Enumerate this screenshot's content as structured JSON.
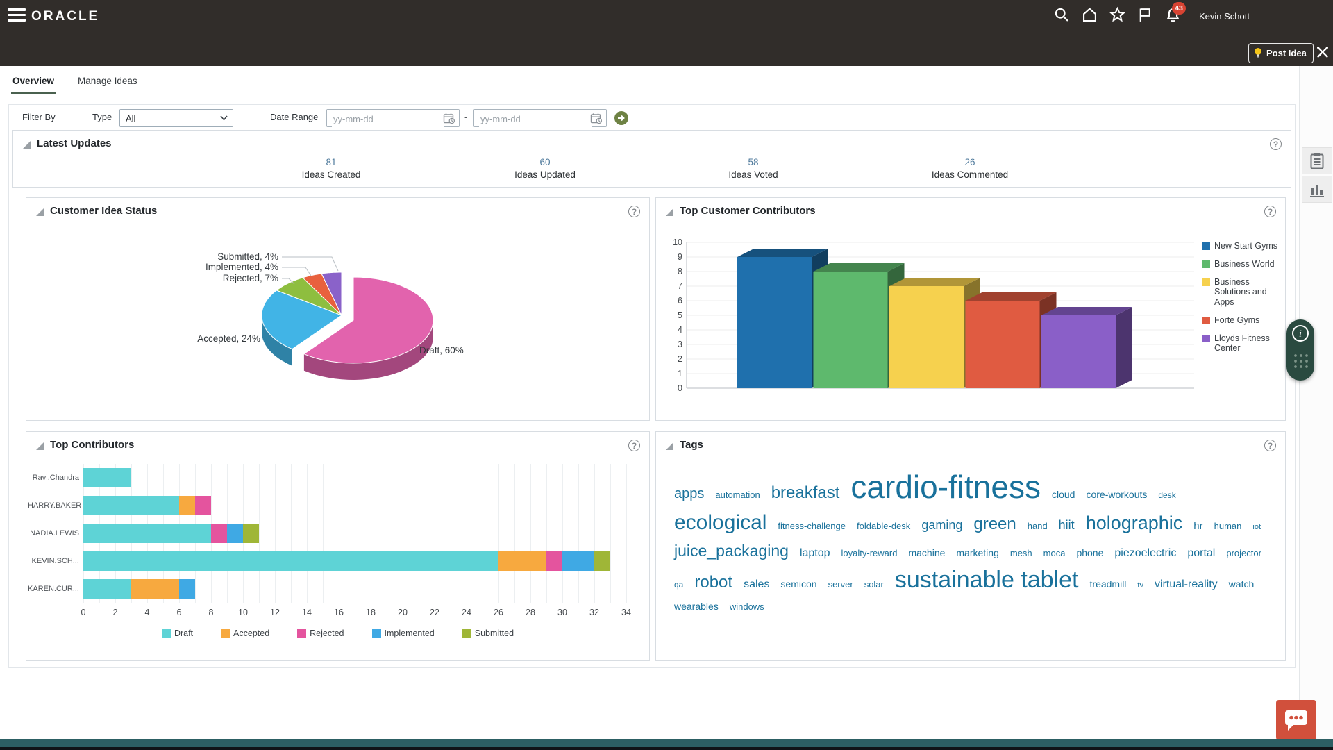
{
  "app": {
    "brand": "ORACLE",
    "user_name": "Kevin Schott",
    "notification_count": "43",
    "post_idea_label": "Post Idea",
    "top_icons": [
      "hamburger-icon",
      "search-icon",
      "home-icon",
      "favorites-star-icon",
      "flag-icon",
      "notifications-bell-icon",
      "tools-icon"
    ]
  },
  "tabs": [
    {
      "label": "Overview",
      "active": true
    },
    {
      "label": "Manage Ideas",
      "active": false
    }
  ],
  "filter": {
    "filter_by_label": "Filter By",
    "type_label": "Type",
    "type_value": "All",
    "date_range_label": "Date Range",
    "date_from_placeholder": "yy-mm-dd",
    "date_to_placeholder": "yy-mm-dd",
    "separator": "-"
  },
  "latest_updates": {
    "title": "Latest Updates",
    "stats": [
      {
        "value": "81",
        "label": "Ideas Created"
      },
      {
        "value": "60",
        "label": "Ideas Updated"
      },
      {
        "value": "58",
        "label": "Ideas Voted"
      },
      {
        "value": "26",
        "label": "Ideas Commented"
      }
    ]
  },
  "chart_data": [
    {
      "id": "customer_idea_status",
      "type": "pie",
      "title": "Customer Idea Status",
      "labels": [
        "Draft",
        "Accepted",
        "Rejected",
        "Implemented",
        "Submitted"
      ],
      "values": [
        60,
        24,
        7,
        4,
        4
      ],
      "unit": "%",
      "colors": [
        "#e263ad",
        "#41b4e6",
        "#8ebe3f",
        "#e8613e",
        "#8a62c9"
      ],
      "style": "3d, first slice exploded",
      "label_format": "Label, N%"
    },
    {
      "id": "top_customer_contributors",
      "type": "bar",
      "title": "Top Customer Contributors",
      "categories": [
        "New Start Gyms",
        "Business World",
        "Business Solutions and Apps",
        "Forte Gyms",
        "Lloyds Fitness Center"
      ],
      "values": [
        9,
        8,
        7,
        6,
        5
      ],
      "colors": [
        "#1f70ad",
        "#5eb96d",
        "#f6d14e",
        "#e05b41",
        "#8a5fc8"
      ],
      "ylim": [
        0,
        10
      ],
      "ytick_step": 1,
      "grid": true,
      "legend_position": "right",
      "style": "3d"
    },
    {
      "id": "top_contributors",
      "type": "bar",
      "orientation": "horizontal-stacked",
      "title": "Top Contributors",
      "categories": [
        "Ravi.Chandra",
        "HARRY.BAKER",
        "NADIA.LEWIS",
        "KEVIN.SCH...",
        "KAREN.CUR..."
      ],
      "series": [
        {
          "name": "Draft",
          "color": "#5ed3d6",
          "values": [
            3,
            6,
            8,
            26,
            3
          ]
        },
        {
          "name": "Accepted",
          "color": "#f7a93f",
          "values": [
            0,
            1,
            0,
            3,
            3
          ]
        },
        {
          "name": "Rejected",
          "color": "#e4549e",
          "values": [
            0,
            1,
            1,
            1,
            0
          ]
        },
        {
          "name": "Implemented",
          "color": "#3fa9e4",
          "values": [
            0,
            0,
            1,
            2,
            1
          ]
        },
        {
          "name": "Submitted",
          "color": "#9fb637",
          "values": [
            0,
            0,
            1,
            1,
            0
          ]
        }
      ],
      "xlim": [
        0,
        34
      ],
      "xtick_step": 2,
      "grid_step": 1,
      "legend_position": "bottom"
    },
    {
      "id": "tags",
      "type": "wordcloud",
      "title": "Tags",
      "color": "#19719b",
      "words": [
        {
          "text": "apps",
          "size": 20
        },
        {
          "text": "automation",
          "size": 13
        },
        {
          "text": "breakfast",
          "size": 24
        },
        {
          "text": "cardio-fitness",
          "size": 46
        },
        {
          "text": "cloud",
          "size": 14
        },
        {
          "text": "core-workouts",
          "size": 14
        },
        {
          "text": "desk",
          "size": 12
        },
        {
          "text": "ecological",
          "size": 30
        },
        {
          "text": "fitness-challenge",
          "size": 13
        },
        {
          "text": "foldable-desk",
          "size": 13
        },
        {
          "text": "gaming",
          "size": 18
        },
        {
          "text": "green",
          "size": 24
        },
        {
          "text": "hand",
          "size": 13
        },
        {
          "text": "hiit",
          "size": 18
        },
        {
          "text": "holographic",
          "size": 27
        },
        {
          "text": "hr",
          "size": 15
        },
        {
          "text": "human",
          "size": 13
        },
        {
          "text": "iot",
          "size": 11
        },
        {
          "text": "juice_packaging",
          "size": 23
        },
        {
          "text": "laptop",
          "size": 16
        },
        {
          "text": "loyalty-reward",
          "size": 13
        },
        {
          "text": "machine",
          "size": 14
        },
        {
          "text": "marketing",
          "size": 14
        },
        {
          "text": "mesh",
          "size": 13
        },
        {
          "text": "moca",
          "size": 13
        },
        {
          "text": "phone",
          "size": 14
        },
        {
          "text": "piezoelectric",
          "size": 16
        },
        {
          "text": "portal",
          "size": 16
        },
        {
          "text": "projector",
          "size": 13
        },
        {
          "text": "qa",
          "size": 12
        },
        {
          "text": "robot",
          "size": 24
        },
        {
          "text": "sales",
          "size": 16
        },
        {
          "text": "semicon",
          "size": 14
        },
        {
          "text": "server",
          "size": 13
        },
        {
          "text": "solar",
          "size": 13
        },
        {
          "text": "sustainable tablet",
          "size": 34
        },
        {
          "text": "treadmill",
          "size": 14
        },
        {
          "text": "tv",
          "size": 11
        },
        {
          "text": "virtual-reality",
          "size": 16
        },
        {
          "text": "watch",
          "size": 14
        },
        {
          "text": "wearables",
          "size": 14
        },
        {
          "text": "windows",
          "size": 13
        }
      ]
    }
  ],
  "side_panel": {
    "icons": [
      "clipboard-icon",
      "bar-chart-icon"
    ]
  },
  "assist_widget": {
    "icons": [
      "info-icon",
      "drag-dots-icon"
    ],
    "color": "#2a4a40"
  },
  "chat_button": {
    "icon": "chat-bubble-icon",
    "color": "#d1503c"
  },
  "theme": {
    "header_bg": "#312d2a",
    "active_tab_underline": "#4a614f",
    "link_color": "#4f7a9c",
    "badge_color": "#d84332",
    "bottom_bar_color": "#2c5f63",
    "tag_color": "#19719b"
  }
}
